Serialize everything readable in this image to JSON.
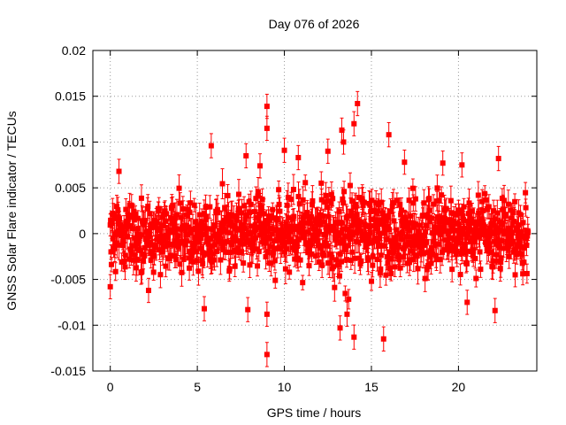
{
  "chart_data": {
    "type": "scatter",
    "title": "Day 076 of 2026",
    "xlabel": "GPS time / hours",
    "ylabel": "GNSS Solar Flare indicator / TECUs",
    "xlim": [
      -1,
      24.5
    ],
    "ylim": [
      -0.015,
      0.02
    ],
    "xticks": [
      0,
      5,
      10,
      15,
      20
    ],
    "xtick_labels": [
      "0",
      "5",
      "10",
      "15",
      "20"
    ],
    "yticks": [
      -0.015,
      -0.01,
      -0.005,
      0,
      0.005,
      0.01,
      0.015,
      0.02
    ],
    "ytick_labels": [
      "-0.015",
      "-0.01",
      "-0.005",
      "0",
      "0.005",
      "0.01",
      "0.015",
      "0.02"
    ],
    "grid": true,
    "series": [
      {
        "name": "solar flare indicator",
        "color": "#ff0000",
        "marker": "square",
        "error_bars": true,
        "x_range": [
          0,
          24
        ],
        "typical_spread": 0.0035,
        "typical_error": 0.0012,
        "outliers": [
          {
            "x": 0.0,
            "y": -0.0058
          },
          {
            "x": 0.5,
            "y": 0.0068
          },
          {
            "x": 2.2,
            "y": -0.0062
          },
          {
            "x": 5.8,
            "y": 0.0096
          },
          {
            "x": 5.4,
            "y": -0.0082
          },
          {
            "x": 7.8,
            "y": 0.0085
          },
          {
            "x": 7.9,
            "y": -0.0083
          },
          {
            "x": 8.6,
            "y": 0.0074
          },
          {
            "x": 9.0,
            "y": 0.0139
          },
          {
            "x": 9.0,
            "y": 0.0115
          },
          {
            "x": 9.0,
            "y": -0.0088
          },
          {
            "x": 9.0,
            "y": -0.0132
          },
          {
            "x": 10.0,
            "y": 0.0091
          },
          {
            "x": 10.8,
            "y": 0.0083
          },
          {
            "x": 12.5,
            "y": 0.009
          },
          {
            "x": 13.3,
            "y": 0.0113
          },
          {
            "x": 13.4,
            "y": 0.01
          },
          {
            "x": 13.2,
            "y": -0.0103
          },
          {
            "x": 13.6,
            "y": -0.0088
          },
          {
            "x": 14.2,
            "y": 0.0142
          },
          {
            "x": 14.0,
            "y": 0.012
          },
          {
            "x": 14.0,
            "y": -0.0113
          },
          {
            "x": 15.7,
            "y": -0.0115
          },
          {
            "x": 16.0,
            "y": 0.0108
          },
          {
            "x": 16.9,
            "y": 0.0078
          },
          {
            "x": 19.1,
            "y": 0.0077
          },
          {
            "x": 20.2,
            "y": 0.0075
          },
          {
            "x": 22.1,
            "y": -0.0084
          },
          {
            "x": 22.3,
            "y": 0.0082
          },
          {
            "x": 20.5,
            "y": -0.0075
          }
        ]
      }
    ]
  }
}
